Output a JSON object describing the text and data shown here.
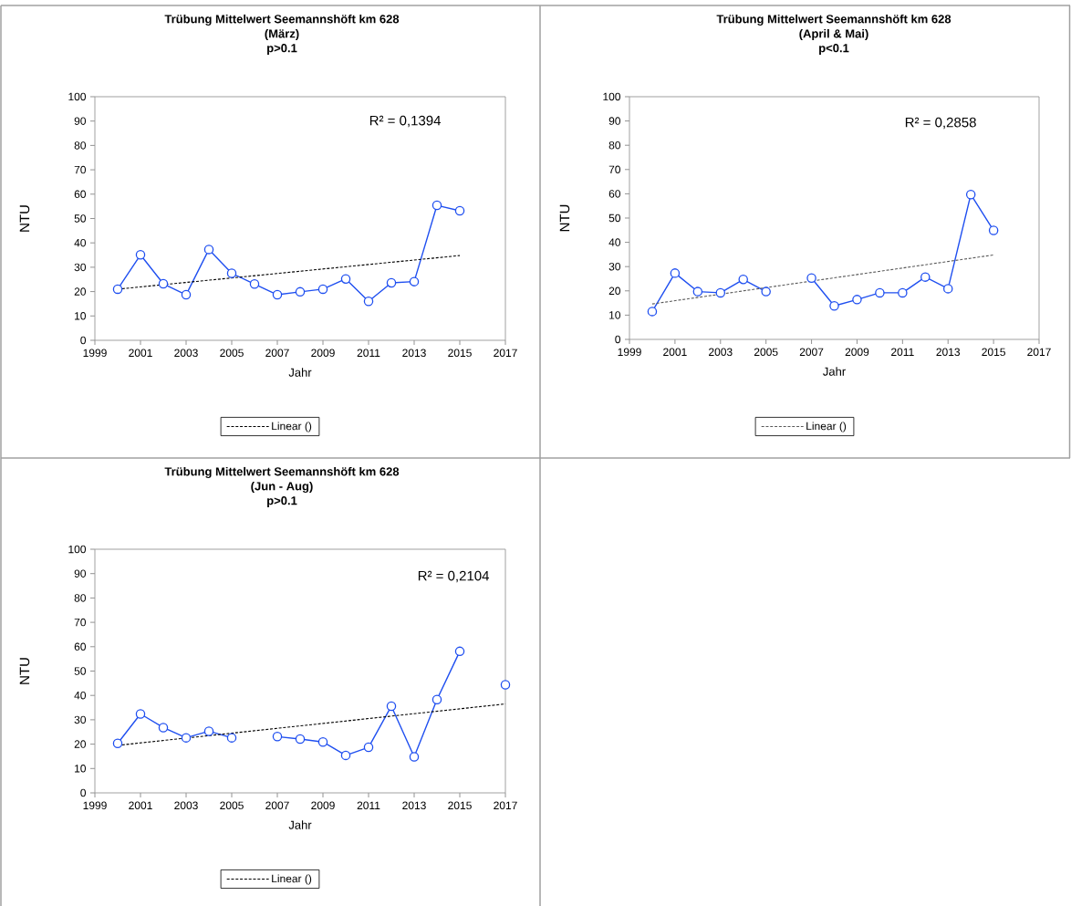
{
  "chart_data": [
    {
      "type": "line",
      "title": "Trübung Mittelwert Seemannshöft km 628",
      "subtitle": "(März)",
      "xlabel": "Jahr",
      "ylabel": "NTU",
      "annotations": [
        "p>0.1",
        "R² = 0,1394"
      ],
      "xlim": [
        1999,
        2017
      ],
      "xticks": [
        1999,
        2001,
        2003,
        2005,
        2007,
        2009,
        2011,
        2013,
        2015,
        2017
      ],
      "ylim": [
        0,
        100
      ],
      "yticks": [
        0,
        10,
        20,
        30,
        40,
        50,
        60,
        70,
        80,
        90,
        100
      ],
      "legend": "bottom",
      "marker": "circle",
      "series": [
        {
          "color": "#1f4ff0",
          "x": [
            2000,
            2001,
            2002,
            2003,
            2004,
            2005,
            2006,
            2007,
            2008,
            2009,
            2010,
            2011,
            2012,
            2013,
            2014,
            2015
          ],
          "values": [
            21.0,
            35.1,
            23.2,
            18.7,
            37.3,
            27.5,
            23.1,
            18.7,
            19.9,
            21.0,
            25.2,
            16.0,
            23.6,
            24.1,
            55.4,
            53.2
          ]
        },
        {
          "name": "Linear ()",
          "type": "line",
          "color": "#000000",
          "line_style": "dashed",
          "marker": "none",
          "x": [
            2000,
            2015
          ],
          "values": [
            21.0,
            34.8
          ]
        }
      ]
    },
    {
      "type": "line",
      "title": "Trübung Mittelwert Seemannshöft km 628",
      "subtitle": "(April & Mai)",
      "xlabel": "Jahr",
      "ylabel": "NTU",
      "annotations": [
        "p<0.1",
        "R² = 0,2858"
      ],
      "xlim": [
        1999,
        2017
      ],
      "xticks": [
        1999,
        2001,
        2003,
        2005,
        2007,
        2009,
        2011,
        2013,
        2015,
        2017
      ],
      "ylim": [
        0,
        100
      ],
      "yticks": [
        0,
        10,
        20,
        30,
        40,
        50,
        60,
        70,
        80,
        90,
        100
      ],
      "legend": "bottom",
      "marker": "circle",
      "series": [
        {
          "color": "#1f4ff0",
          "x": [
            2000,
            2001,
            2002,
            2003,
            2004,
            2005,
            2006,
            2007,
            2008,
            2009,
            2010,
            2011,
            2012,
            2013,
            2014,
            2015
          ],
          "values": [
            11.5,
            27.3,
            19.7,
            19.2,
            24.7,
            19.7,
            null,
            25.3,
            13.8,
            16.4,
            19.2,
            19.2,
            25.7,
            20.9,
            59.7,
            44.9
          ]
        },
        {
          "name": "Linear ()",
          "type": "line",
          "color": "#595959",
          "line_style": "dashed",
          "marker": "none",
          "x": [
            2000,
            2015
          ],
          "values": [
            14.6,
            34.8
          ]
        }
      ]
    },
    {
      "type": "line",
      "title": "Trübung Mittelwert Seemannshöft km 628",
      "subtitle": "(Jun - Aug)",
      "xlabel": "Jahr",
      "ylabel": "NTU",
      "annotations": [
        "p>0.1",
        "R² = 0,2104"
      ],
      "xlim": [
        1999,
        2017
      ],
      "xticks": [
        1999,
        2001,
        2003,
        2005,
        2007,
        2009,
        2011,
        2013,
        2015,
        2017
      ],
      "ylim": [
        0,
        100
      ],
      "yticks": [
        0,
        10,
        20,
        30,
        40,
        50,
        60,
        70,
        80,
        90,
        100
      ],
      "legend": "bottom",
      "marker": "circle",
      "series": [
        {
          "color": "#1f4ff0",
          "x": [
            2000,
            2001,
            2002,
            2003,
            2004,
            2005,
            2006,
            2007,
            2008,
            2009,
            2010,
            2011,
            2012,
            2013,
            2014,
            2015,
            2016,
            2017
          ],
          "values": [
            20.3,
            32.4,
            26.8,
            22.6,
            25.3,
            22.6,
            null,
            23.1,
            22.1,
            20.9,
            15.4,
            18.7,
            35.6,
            14.8,
            38.3,
            58.1,
            null,
            44.4
          ]
        },
        {
          "name": "Linear ()",
          "type": "line",
          "color": "#000000",
          "line_style": "dashed",
          "marker": "none",
          "x": [
            2000,
            2017
          ],
          "values": [
            19.5,
            36.5
          ]
        }
      ]
    }
  ]
}
